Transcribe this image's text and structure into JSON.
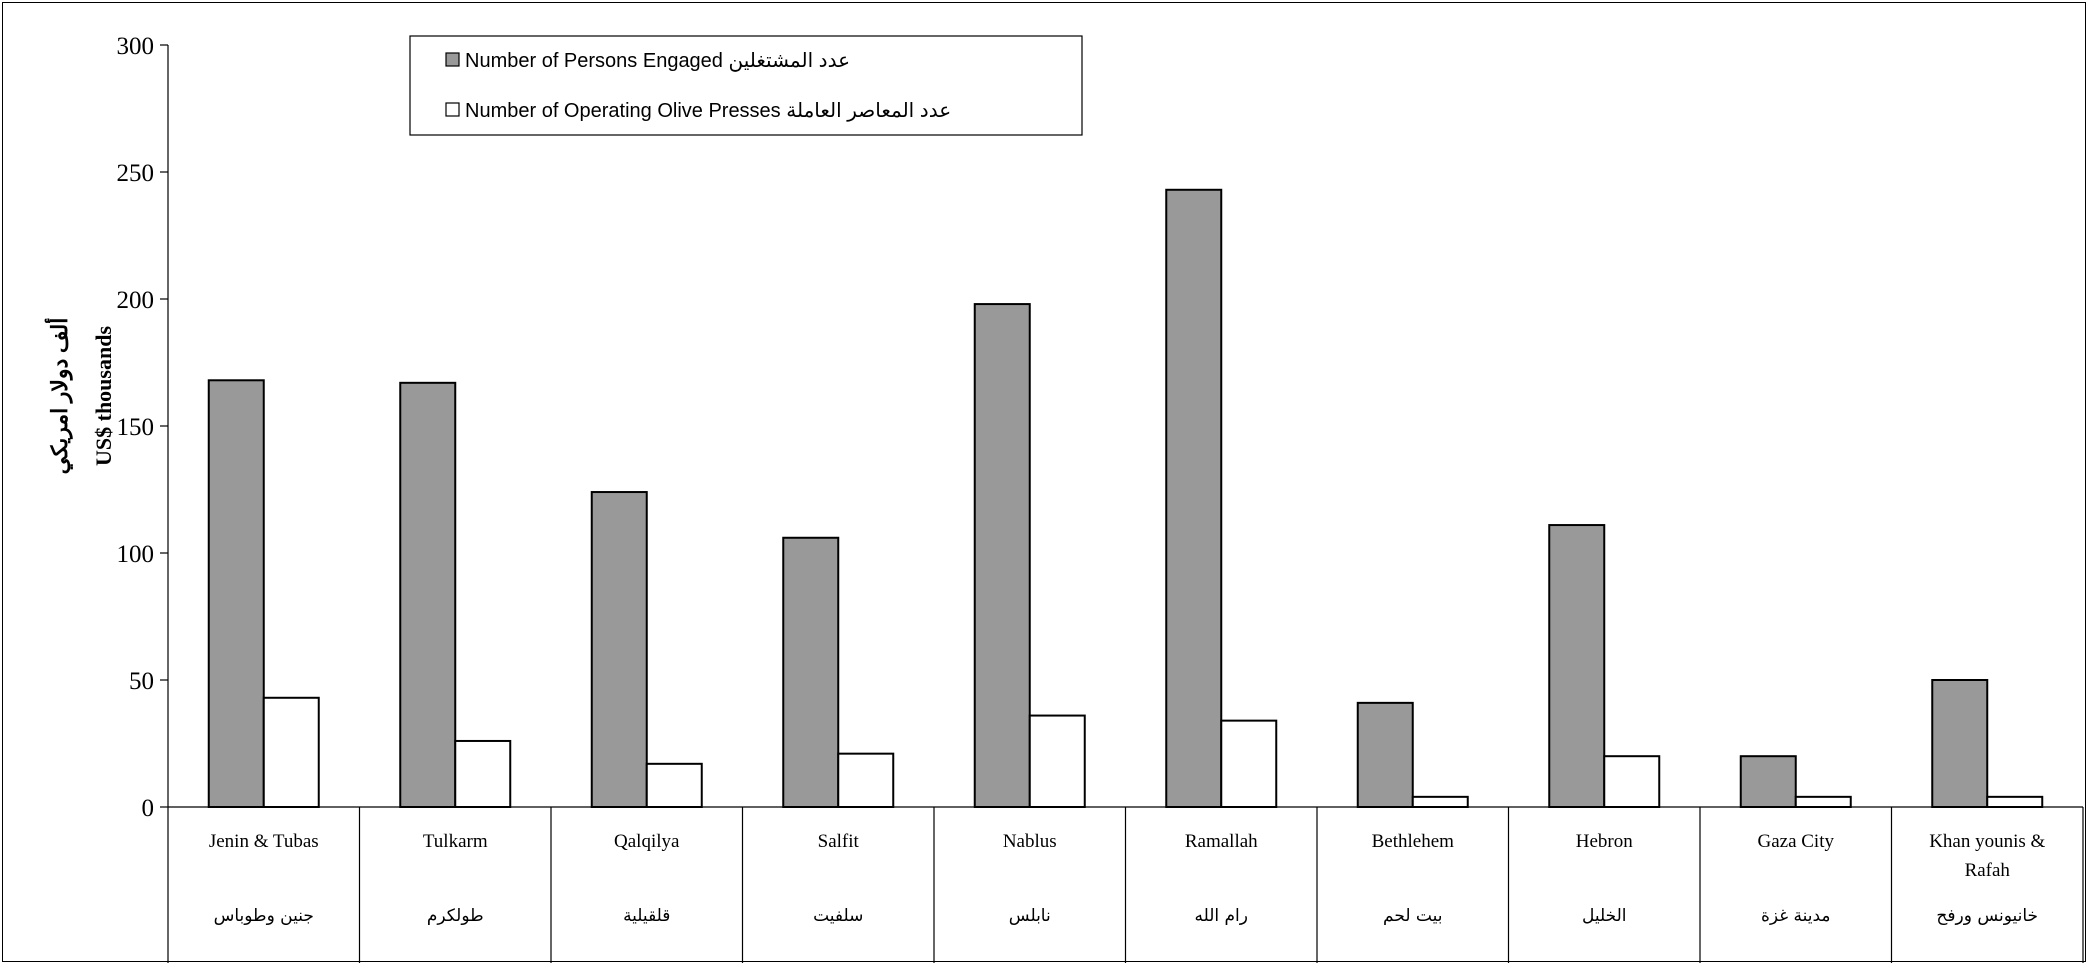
{
  "chart_data": {
    "type": "bar",
    "ylabel_ar": "ألف دولار امريكي",
    "ylabel_en": "US$ thousands",
    "ylim": [
      0,
      300
    ],
    "yticks": [
      "0",
      "50",
      "100",
      "150",
      "200",
      "250",
      "300"
    ],
    "categories": [
      {
        "en": "Jenin & Tubas",
        "ar": "جنين وطوباس"
      },
      {
        "en": "Tulkarm",
        "ar": "طولكرم"
      },
      {
        "en": "Qalqilya",
        "ar": "قلقيلية"
      },
      {
        "en": "Salfit",
        "ar": "سلفيت"
      },
      {
        "en": "Nablus",
        "ar": "نابلس"
      },
      {
        "en": "Ramallah",
        "ar": "رام الله"
      },
      {
        "en": "Bethlehem",
        "ar": "بيت لحم"
      },
      {
        "en": "Hebron",
        "ar": "الخليل"
      },
      {
        "en": "Gaza City",
        "ar": "مدينة غزة"
      },
      {
        "en": "Khan younis & Rafah",
        "ar": "خانيونس ورفح"
      }
    ],
    "series": [
      {
        "name": "Number of Persons Engaged عدد المشتغلين",
        "color": "#999999",
        "values": [
          168,
          167,
          124,
          106,
          198,
          243,
          41,
          111,
          20,
          50
        ]
      },
      {
        "name": "Number of Operating  Olive Presses عدد المعاصر  العاملة",
        "color": "#ffffff",
        "values": [
          43,
          26,
          17,
          21,
          36,
          34,
          4,
          20,
          4,
          4
        ]
      }
    ],
    "legend_position": "top-left",
    "grid": false
  }
}
